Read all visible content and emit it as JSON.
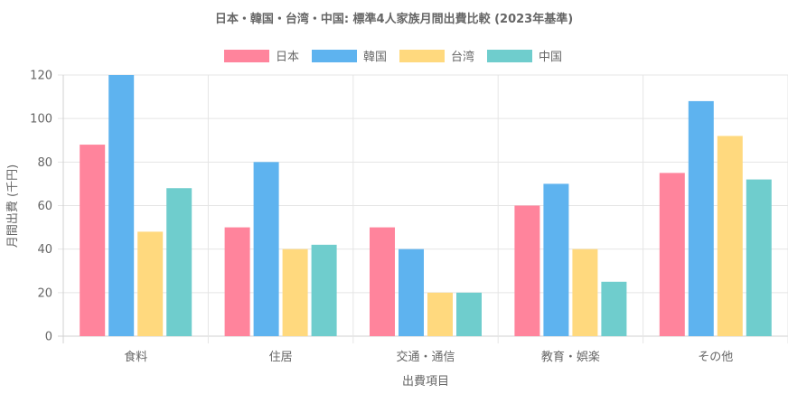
{
  "chart_data": {
    "type": "bar",
    "title": "日本・韓国・台湾・中国: 標準4人家族月間出費比較 (2023年基準)",
    "xlabel": "出費項目",
    "ylabel": "月間出費 (千円)",
    "categories": [
      "食料",
      "住居",
      "交通・通信",
      "教育・娯楽",
      "その他"
    ],
    "series": [
      {
        "name": "日本",
        "values": [
          88,
          50,
          50,
          60,
          75
        ],
        "color": "#ff849c"
      },
      {
        "name": "韓国",
        "values": [
          120,
          80,
          40,
          70,
          108
        ],
        "color": "#5eb3ef"
      },
      {
        "name": "台湾",
        "values": [
          48,
          40,
          20,
          40,
          92
        ],
        "color": "#ffd97e"
      },
      {
        "name": "中国",
        "values": [
          68,
          42,
          20,
          25,
          72
        ],
        "color": "#6fcdcd"
      }
    ],
    "ylim": [
      0,
      120
    ],
    "yticks": [
      "0",
      "20",
      "40",
      "60",
      "80",
      "100",
      "120"
    ],
    "grid": true,
    "legend_position": "top"
  }
}
